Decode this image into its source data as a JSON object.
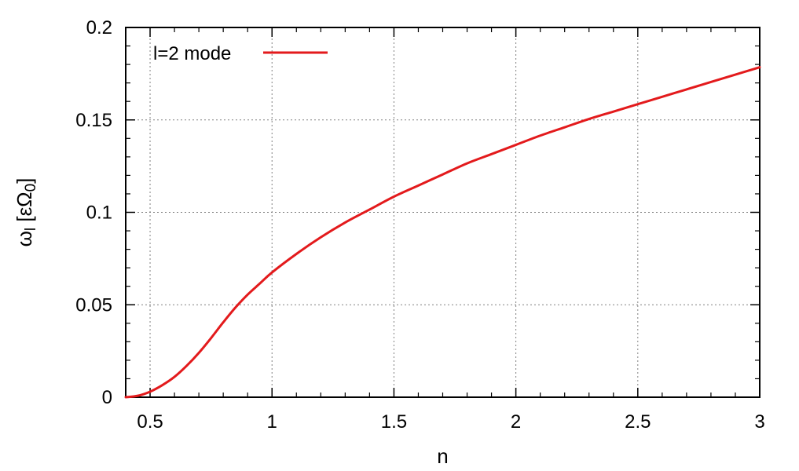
{
  "chart_data": {
    "type": "line",
    "xlabel": "n",
    "ylabel": {
      "main": "ω",
      "main_sub": "l",
      "unit_open": " [εΩ",
      "unit_sub": "0",
      "unit_close": "]"
    },
    "xlim": [
      0.4,
      3
    ],
    "ylim": [
      0,
      0.2
    ],
    "x_ticks": [
      "0.5",
      "1",
      "1.5",
      "2",
      "2.5",
      "3"
    ],
    "y_ticks": [
      "0",
      "0.05",
      "0.1",
      "0.15",
      "0.2"
    ],
    "grid": true,
    "legend_position": "top-left",
    "series": [
      {
        "name": "l=2 mode",
        "color": "#e31a1c",
        "x": [
          0.4,
          0.45,
          0.5,
          0.55,
          0.6,
          0.65,
          0.7,
          0.75,
          0.8,
          0.85,
          0.9,
          0.95,
          1.0,
          1.1,
          1.2,
          1.3,
          1.4,
          1.5,
          1.6,
          1.7,
          1.8,
          1.9,
          2.0,
          2.1,
          2.2,
          2.3,
          2.4,
          2.5,
          2.6,
          2.7,
          2.8,
          2.9,
          3.0
        ],
        "y": [
          0.0,
          0.0008,
          0.003,
          0.0065,
          0.011,
          0.017,
          0.024,
          0.032,
          0.0405,
          0.0485,
          0.0555,
          0.0615,
          0.0675,
          0.0775,
          0.0865,
          0.0945,
          0.1015,
          0.1085,
          0.1145,
          0.1205,
          0.1265,
          0.1315,
          0.1365,
          0.1415,
          0.146,
          0.1505,
          0.1545,
          0.1585,
          0.1625,
          0.1665,
          0.1705,
          0.1745,
          0.1785
        ]
      }
    ]
  }
}
